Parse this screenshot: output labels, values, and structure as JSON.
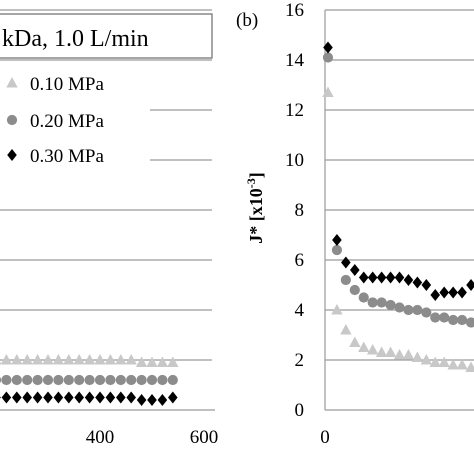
{
  "chart_data": [
    {
      "type": "scatter",
      "panel_label": "",
      "title": "kDa, 1.0 L/min",
      "xlabel": "",
      "ylabel": "",
      "x_ticks": [
        "400",
        "600"
      ],
      "xlim": [
        200,
        600
      ],
      "ylim": [
        0,
        16
      ],
      "grid": true,
      "legend_position": "top-left",
      "series": [
        {
          "name": "0.10 MPa",
          "marker": "triangle",
          "color": "#c8c8c8",
          "x": [
            200,
            220,
            240,
            260,
            280,
            300,
            320,
            340,
            360,
            380,
            400,
            420,
            440,
            460,
            480,
            500,
            520,
            540
          ],
          "y": [
            2.0,
            2.0,
            2.0,
            2.0,
            2.0,
            2.0,
            2.0,
            2.0,
            2.0,
            2.0,
            2.0,
            2.0,
            2.0,
            2.0,
            1.9,
            1.9,
            1.9,
            1.9
          ]
        },
        {
          "name": "0.20 MPa",
          "marker": "circle",
          "color": "#8c8c8c",
          "x": [
            200,
            220,
            240,
            260,
            280,
            300,
            320,
            340,
            360,
            380,
            400,
            420,
            440,
            460,
            480,
            500,
            520,
            540
          ],
          "y": [
            1.2,
            1.2,
            1.2,
            1.2,
            1.2,
            1.2,
            1.2,
            1.2,
            1.2,
            1.2,
            1.2,
            1.2,
            1.2,
            1.2,
            1.2,
            1.2,
            1.2,
            1.2
          ]
        },
        {
          "name": "0.30 MPa",
          "marker": "diamond",
          "color": "#000000",
          "x": [
            200,
            220,
            240,
            260,
            280,
            300,
            320,
            340,
            360,
            380,
            400,
            420,
            440,
            460,
            480,
            500,
            520,
            540
          ],
          "y": [
            0.5,
            0.5,
            0.5,
            0.5,
            0.5,
            0.5,
            0.5,
            0.5,
            0.5,
            0.5,
            0.5,
            0.5,
            0.5,
            0.5,
            0.4,
            0.4,
            0.4,
            0.5
          ]
        }
      ]
    },
    {
      "type": "scatter",
      "panel_label": "(b)",
      "title": "",
      "xlabel": "",
      "ylabel": "J* [x10-3]",
      "y_ticks": [
        "0",
        "2",
        "4",
        "6",
        "8",
        "10",
        "12",
        "14",
        "16"
      ],
      "x_ticks": [
        "0"
      ],
      "xlim": [
        0,
        150
      ],
      "ylim": [
        0,
        16
      ],
      "grid": true,
      "legend_position": "none",
      "series": [
        {
          "name": "0.10 MPa",
          "marker": "triangle",
          "color": "#c8c8c8",
          "x": [
            3,
            12,
            21,
            30,
            39,
            48,
            57,
            66,
            75,
            84,
            93,
            102,
            111,
            120,
            129,
            138,
            147
          ],
          "y": [
            12.7,
            4.0,
            3.2,
            2.7,
            2.5,
            2.4,
            2.3,
            2.3,
            2.2,
            2.2,
            2.1,
            2.0,
            1.9,
            1.9,
            1.8,
            1.8,
            1.7
          ]
        },
        {
          "name": "0.20 MPa",
          "marker": "circle",
          "color": "#8c8c8c",
          "x": [
            3,
            12,
            21,
            30,
            39,
            48,
            57,
            66,
            75,
            84,
            93,
            102,
            111,
            120,
            129,
            138,
            147
          ],
          "y": [
            14.1,
            6.4,
            5.2,
            4.8,
            4.5,
            4.3,
            4.3,
            4.2,
            4.1,
            4.0,
            4.0,
            3.9,
            3.7,
            3.7,
            3.6,
            3.6,
            3.5
          ]
        },
        {
          "name": "0.30 MPa",
          "marker": "diamond",
          "color": "#000000",
          "x": [
            3,
            12,
            21,
            30,
            39,
            48,
            57,
            66,
            75,
            84,
            93,
            102,
            111,
            120,
            129,
            138,
            147
          ],
          "y": [
            14.5,
            6.8,
            5.9,
            5.6,
            5.3,
            5.3,
            5.3,
            5.3,
            5.3,
            5.2,
            5.1,
            5.0,
            4.6,
            4.7,
            4.7,
            4.7,
            5.0
          ]
        }
      ]
    }
  ]
}
